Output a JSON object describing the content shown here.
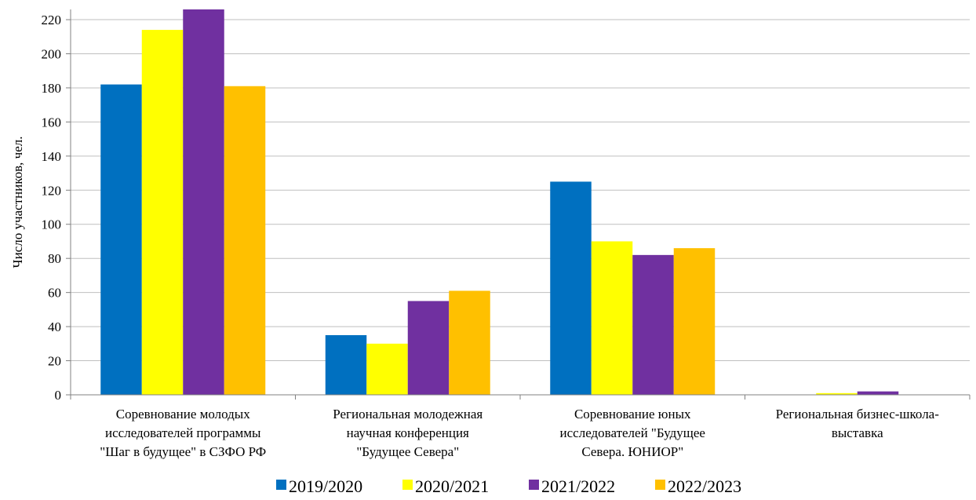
{
  "chart_data": {
    "type": "bar",
    "title": "",
    "xlabel": "",
    "ylabel": "Число участников, чел.",
    "ylim": [
      0,
      226
    ],
    "yticks": [
      0,
      20,
      40,
      60,
      80,
      100,
      120,
      140,
      160,
      180,
      200,
      220
    ],
    "grid": true,
    "legend_position": "bottom",
    "categories": [
      [
        "Соревнование молодых",
        "исследователей программы",
        "\"Шаг в будущее\" в  СЗФО РФ"
      ],
      [
        "Региональная молодежная",
        "научная конференция",
        "\"Будущее Севера\""
      ],
      [
        "Соревнование юных",
        "исследователей \"Будущее",
        "Севера. ЮНИОР\""
      ],
      [
        "Региональная бизнес-школа-",
        "выставка"
      ]
    ],
    "series": [
      {
        "name": "2019/2020",
        "color": "#0070C0",
        "values": [
          182,
          35,
          125,
          0
        ]
      },
      {
        "name": "2020/2021",
        "color": "#FFFF00",
        "values": [
          214,
          30,
          90,
          1
        ]
      },
      {
        "name": "2021/2022",
        "color": "#7030A0",
        "values": [
          227,
          55,
          82,
          2
        ]
      },
      {
        "name": "2022/2023",
        "color": "#FFC000",
        "values": [
          181,
          61,
          86,
          0
        ]
      }
    ]
  }
}
